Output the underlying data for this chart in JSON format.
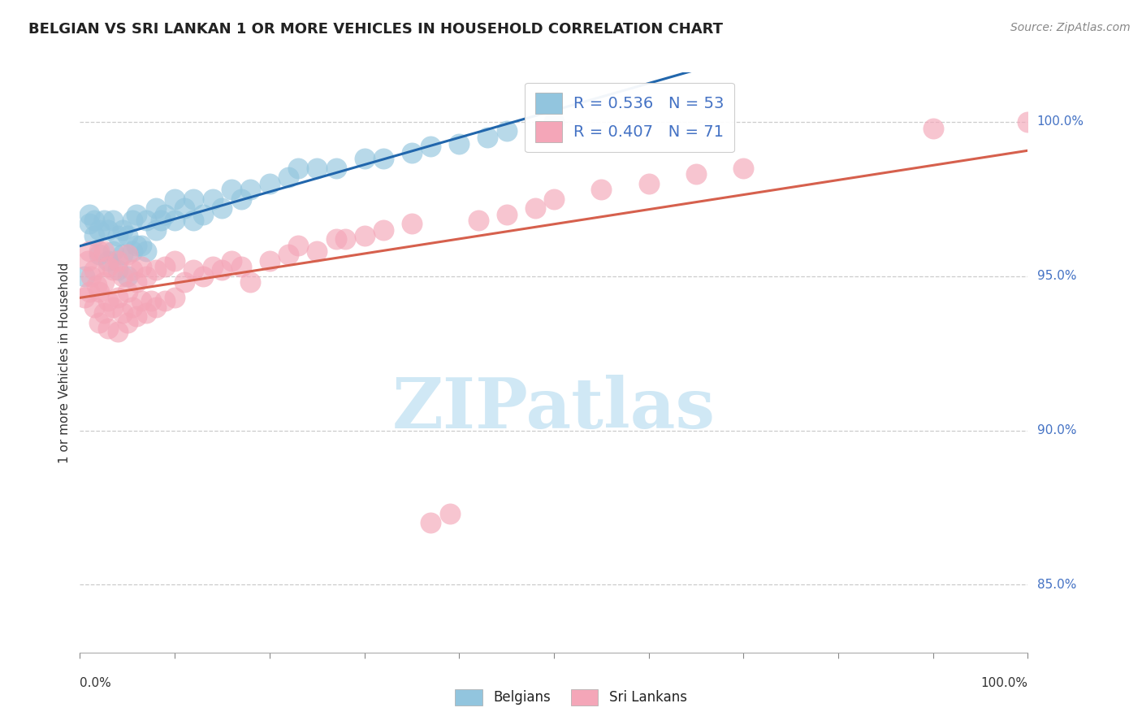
{
  "title": "BELGIAN VS SRI LANKAN 1 OR MORE VEHICLES IN HOUSEHOLD CORRELATION CHART",
  "source": "Source: ZipAtlas.com",
  "ylabel": "1 or more Vehicles in Household",
  "ytick_labels": [
    "85.0%",
    "90.0%",
    "95.0%",
    "100.0%"
  ],
  "ytick_values": [
    0.85,
    0.9,
    0.95,
    1.0
  ],
  "xmin": 0.0,
  "xmax": 1.0,
  "ymin": 0.828,
  "ymax": 1.016,
  "R_belgian": 0.536,
  "N_belgian": 53,
  "R_srilankan": 0.407,
  "N_srilankan": 71,
  "belgian_color": "#92c5de",
  "srilankan_color": "#f4a6b8",
  "belgian_line_color": "#2166ac",
  "srilankan_line_color": "#d6604d",
  "watermark_color": "#d0e8f5",
  "background_color": "#ffffff",
  "belgians_x": [
    0.005,
    0.01,
    0.01,
    0.015,
    0.015,
    0.02,
    0.02,
    0.025,
    0.03,
    0.03,
    0.035,
    0.035,
    0.04,
    0.04,
    0.045,
    0.045,
    0.05,
    0.05,
    0.055,
    0.055,
    0.06,
    0.06,
    0.065,
    0.07,
    0.07,
    0.08,
    0.08,
    0.085,
    0.09,
    0.1,
    0.1,
    0.11,
    0.12,
    0.12,
    0.13,
    0.14,
    0.15,
    0.16,
    0.17,
    0.18,
    0.2,
    0.22,
    0.23,
    0.25,
    0.27,
    0.3,
    0.32,
    0.35,
    0.37,
    0.4,
    0.43,
    0.45,
    0.5
  ],
  "belgians_y": [
    0.95,
    0.967,
    0.97,
    0.963,
    0.968,
    0.957,
    0.965,
    0.968,
    0.955,
    0.965,
    0.958,
    0.968,
    0.952,
    0.963,
    0.957,
    0.965,
    0.95,
    0.963,
    0.958,
    0.968,
    0.96,
    0.97,
    0.96,
    0.958,
    0.968,
    0.965,
    0.972,
    0.968,
    0.97,
    0.968,
    0.975,
    0.972,
    0.968,
    0.975,
    0.97,
    0.975,
    0.972,
    0.978,
    0.975,
    0.978,
    0.98,
    0.982,
    0.985,
    0.985,
    0.985,
    0.988,
    0.988,
    0.99,
    0.992,
    0.993,
    0.995,
    0.997,
    1.0
  ],
  "srilankans_x": [
    0.005,
    0.008,
    0.01,
    0.01,
    0.012,
    0.015,
    0.015,
    0.018,
    0.02,
    0.02,
    0.02,
    0.025,
    0.025,
    0.025,
    0.03,
    0.03,
    0.03,
    0.035,
    0.035,
    0.04,
    0.04,
    0.04,
    0.045,
    0.045,
    0.05,
    0.05,
    0.05,
    0.055,
    0.055,
    0.06,
    0.06,
    0.065,
    0.065,
    0.07,
    0.07,
    0.075,
    0.08,
    0.08,
    0.09,
    0.09,
    0.1,
    0.1,
    0.11,
    0.12,
    0.13,
    0.14,
    0.15,
    0.16,
    0.17,
    0.18,
    0.2,
    0.22,
    0.23,
    0.25,
    0.27,
    0.28,
    0.3,
    0.32,
    0.35,
    0.37,
    0.39,
    0.42,
    0.45,
    0.48,
    0.5,
    0.55,
    0.6,
    0.65,
    0.7,
    0.9,
    1.0
  ],
  "srilankans_y": [
    0.943,
    0.955,
    0.945,
    0.958,
    0.95,
    0.94,
    0.952,
    0.947,
    0.935,
    0.945,
    0.958,
    0.938,
    0.948,
    0.958,
    0.933,
    0.942,
    0.953,
    0.94,
    0.952,
    0.932,
    0.943,
    0.955,
    0.938,
    0.95,
    0.935,
    0.945,
    0.957,
    0.94,
    0.952,
    0.937,
    0.948,
    0.942,
    0.953,
    0.938,
    0.95,
    0.942,
    0.94,
    0.952,
    0.942,
    0.953,
    0.943,
    0.955,
    0.948,
    0.952,
    0.95,
    0.953,
    0.952,
    0.955,
    0.953,
    0.948,
    0.955,
    0.957,
    0.96,
    0.958,
    0.962,
    0.962,
    0.963,
    0.965,
    0.967,
    0.87,
    0.873,
    0.968,
    0.97,
    0.972,
    0.975,
    0.978,
    0.98,
    0.983,
    0.985,
    0.998,
    1.0
  ]
}
